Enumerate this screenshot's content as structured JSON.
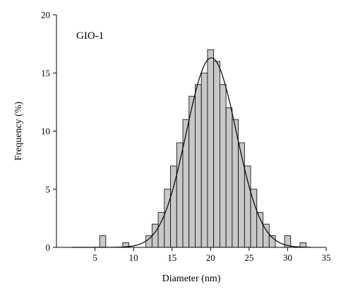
{
  "chart_data": {
    "type": "bar",
    "annotation": "GIO-1",
    "xlabel": "Diameter (nm)",
    "ylabel": "Frequency (%)",
    "xlim": [
      0,
      35
    ],
    "ylim": [
      0,
      20
    ],
    "x_ticks": [
      "5",
      "10",
      "15",
      "20",
      "25",
      "30",
      "35"
    ],
    "y_ticks": [
      "0",
      "5",
      "10",
      "15",
      "20"
    ],
    "bin_width": 0.8,
    "grid": false,
    "legend": "none",
    "bar_fill": "#c8c8c8",
    "bar_stroke": "#000000",
    "fit_curve": {
      "type": "gaussian",
      "mean": 20.1,
      "sigma": 3.25,
      "peak": 16.3
    },
    "bars": [
      {
        "x": 6.0,
        "value": 1.0
      },
      {
        "x": 9.0,
        "value": 0.4
      },
      {
        "x": 12.0,
        "value": 1.0
      },
      {
        "x": 12.8,
        "value": 2.0
      },
      {
        "x": 13.6,
        "value": 3.0
      },
      {
        "x": 14.4,
        "value": 5.0
      },
      {
        "x": 15.2,
        "value": 7.0
      },
      {
        "x": 16.0,
        "value": 9.0
      },
      {
        "x": 16.8,
        "value": 11.0
      },
      {
        "x": 17.6,
        "value": 13.0
      },
      {
        "x": 18.4,
        "value": 14.0
      },
      {
        "x": 19.2,
        "value": 15.0
      },
      {
        "x": 20.0,
        "value": 17.0
      },
      {
        "x": 20.8,
        "value": 16.0
      },
      {
        "x": 21.6,
        "value": 14.0
      },
      {
        "x": 22.4,
        "value": 12.0
      },
      {
        "x": 23.2,
        "value": 11.0
      },
      {
        "x": 24.0,
        "value": 9.0
      },
      {
        "x": 24.8,
        "value": 7.0
      },
      {
        "x": 25.6,
        "value": 5.0
      },
      {
        "x": 26.4,
        "value": 3.0
      },
      {
        "x": 27.2,
        "value": 2.0
      },
      {
        "x": 28.0,
        "value": 1.0
      },
      {
        "x": 30.0,
        "value": 1.0
      },
      {
        "x": 32.0,
        "value": 0.4
      }
    ]
  }
}
